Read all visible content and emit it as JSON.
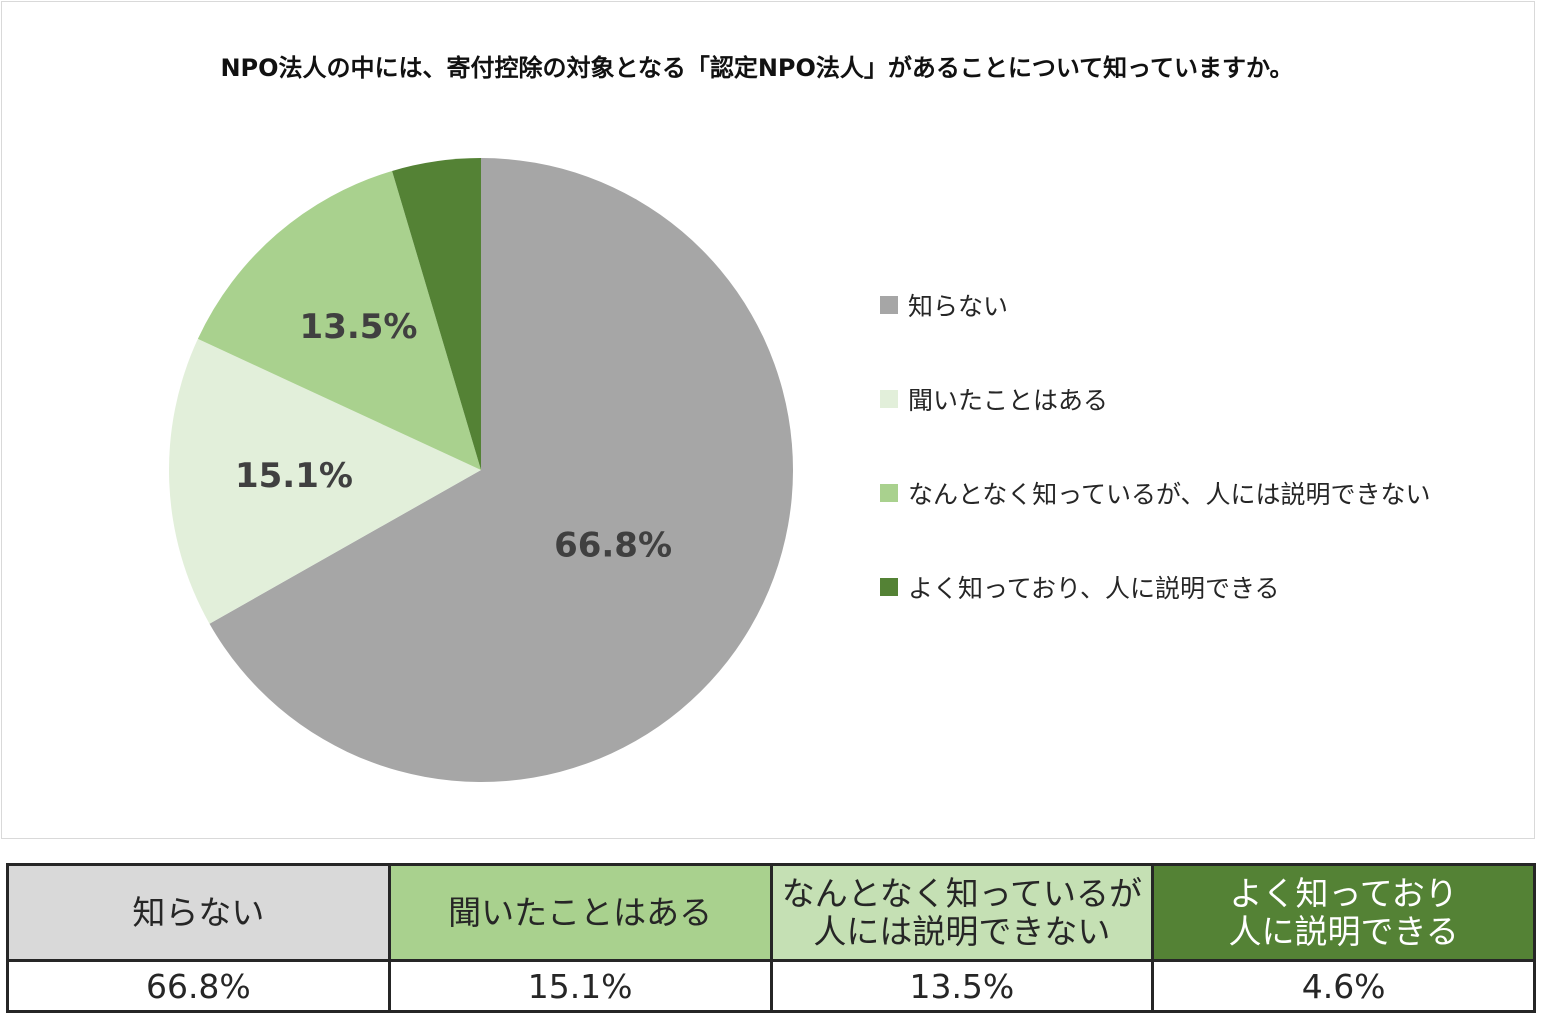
{
  "chart_data": {
    "type": "pie",
    "title": "NPO法人の中には、寄付控除の対象となる「認定NPO法人」があることについて知っていますか。",
    "slices": [
      {
        "name": "知らない",
        "value": 66.8,
        "label": "66.8%",
        "color": "#a6a6a6"
      },
      {
        "name": "聞いたことはある",
        "value": 15.1,
        "label": "15.1%",
        "color": "#e2efda"
      },
      {
        "name": "なんとなく知っているが、人には説明できない",
        "value": 13.5,
        "label": "13.5%",
        "color": "#a9d18e"
      },
      {
        "name": "よく知っており、人に説明できる",
        "value": 4.6,
        "label": "",
        "color": "#548235"
      }
    ],
    "legend_position": "right"
  },
  "table": {
    "headers": [
      {
        "text": "知らない",
        "bg": "#d9d9d9",
        "color": "#262626"
      },
      {
        "text": "聞いたことはある",
        "bg": "#a9d18e",
        "color": "#262626"
      },
      {
        "text": "なんとなく知っているが\n人には説明できない",
        "bg": "#c5e0b4",
        "color": "#262626"
      },
      {
        "text": "よく知っており\n人に説明できる",
        "bg": "#548235",
        "color": "#ffffff"
      }
    ],
    "values": [
      "66.8%",
      "15.1%",
      "13.5%",
      "4.6%"
    ]
  }
}
